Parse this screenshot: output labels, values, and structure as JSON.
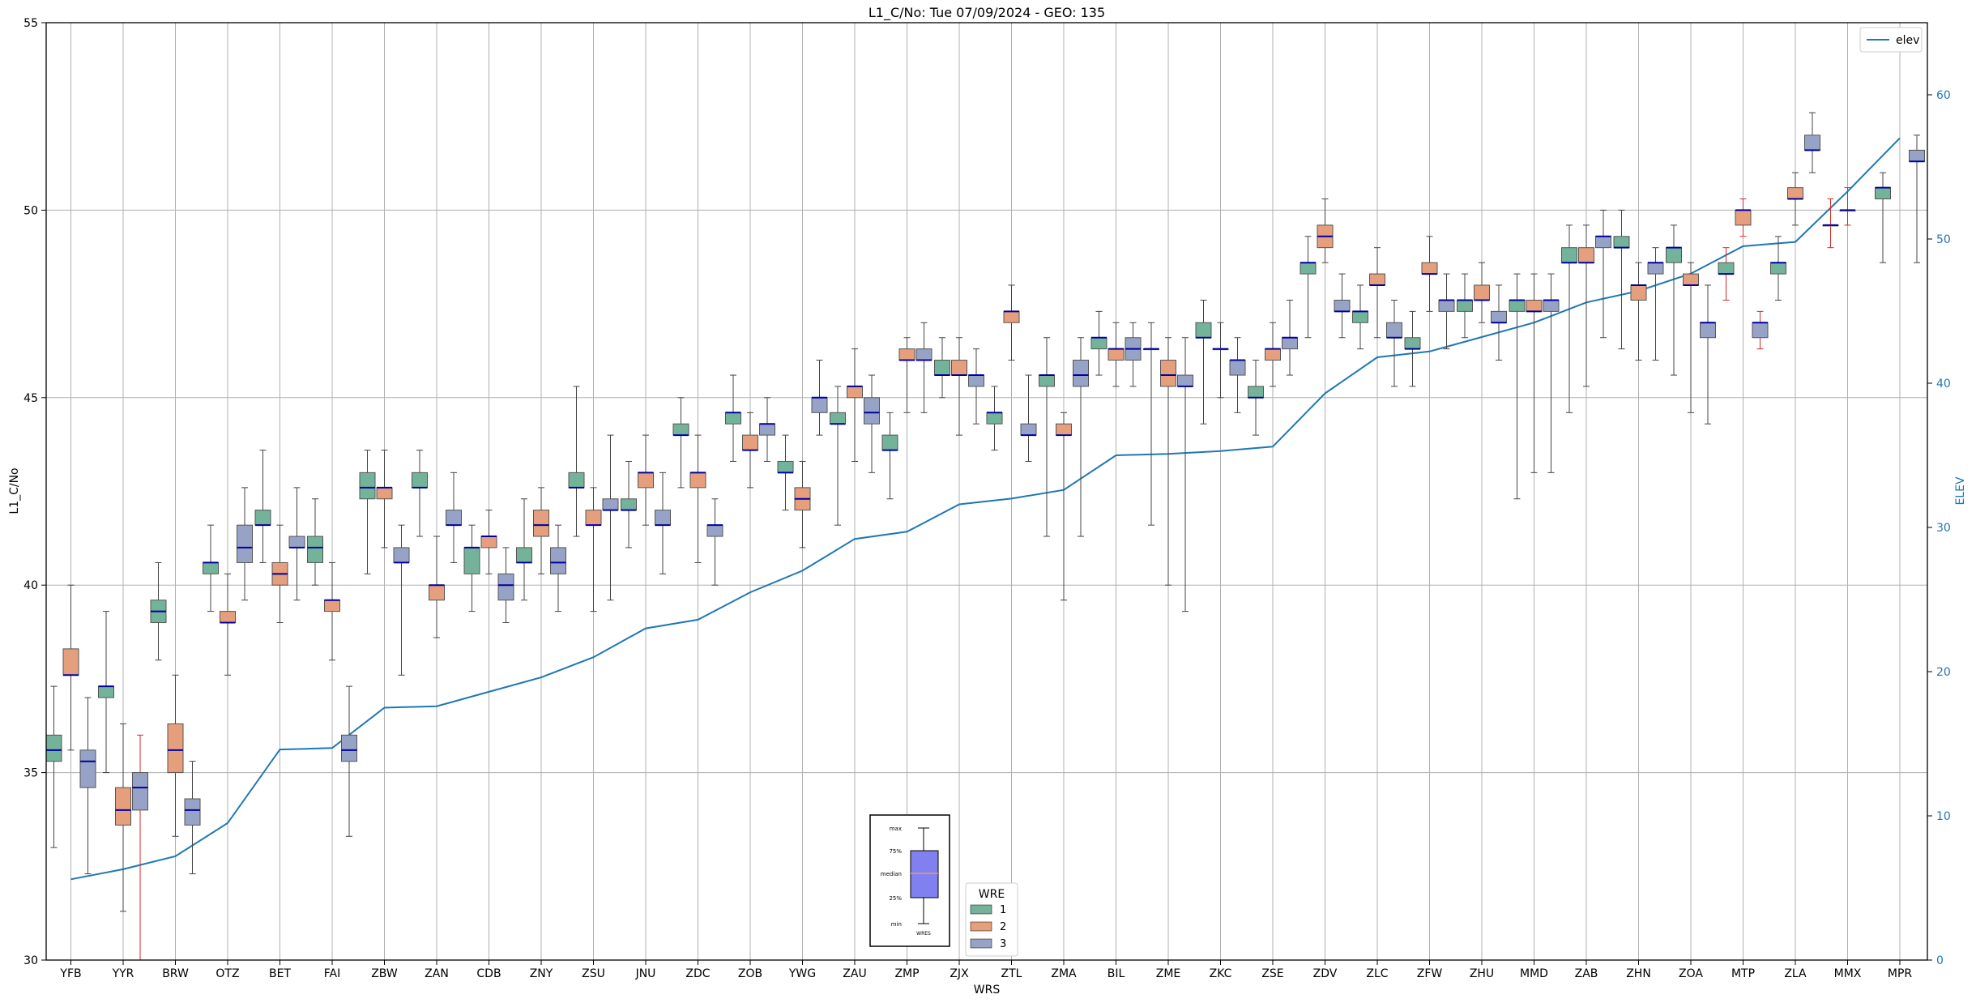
{
  "chart_data": {
    "type": "box",
    "title": "L1_C/No: Tue 07/09/2024 - GEO: 135",
    "xlabel": "WRS",
    "ylabel": "L1_C/No",
    "y2label": "ELEV",
    "ylim": [
      30,
      55
    ],
    "y2lim": [
      0,
      65
    ],
    "yticks": [
      30,
      35,
      40,
      45,
      50,
      55
    ],
    "y2ticks": [
      0,
      10,
      20,
      30,
      40,
      50,
      60
    ],
    "grid": true,
    "categories": [
      "YFB",
      "YYR",
      "BRW",
      "OTZ",
      "BET",
      "FAI",
      "ZBW",
      "ZAN",
      "CDB",
      "ZNY",
      "ZSU",
      "JNU",
      "ZDC",
      "ZOB",
      "YWG",
      "ZAU",
      "ZMP",
      "ZJX",
      "ZTL",
      "ZMA",
      "BIL",
      "ZME",
      "ZKC",
      "ZSE",
      "ZDV",
      "ZLC",
      "ZFW",
      "ZHU",
      "MMD",
      "ZAB",
      "ZHN",
      "ZOA",
      "MTP",
      "ZLA",
      "MMX",
      "MPR"
    ],
    "wre_colors": {
      "1": "#73b39a",
      "2": "#e59f7d",
      "3": "#97a3c6"
    },
    "boxes": [
      {
        "site": "YFB",
        "wre": 1,
        "min": 33.0,
        "q1": 35.3,
        "median": 35.6,
        "q3": 36.0,
        "max": 37.3
      },
      {
        "site": "YFB",
        "wre": 2,
        "min": 35.6,
        "q1": 37.6,
        "median": 37.6,
        "q3": 38.3,
        "max": 40.0
      },
      {
        "site": "YFB",
        "wre": 3,
        "min": 32.3,
        "q1": 34.6,
        "median": 35.3,
        "q3": 35.6,
        "max": 37.0
      },
      {
        "site": "YYR",
        "wre": 1,
        "min": 35.0,
        "q1": 37.0,
        "median": 37.3,
        "q3": 37.3,
        "max": 39.3
      },
      {
        "site": "YYR",
        "wre": 2,
        "min": 31.3,
        "q1": 33.6,
        "median": 34.0,
        "q3": 34.6,
        "max": 36.3
      },
      {
        "site": "YYR",
        "wre": 3,
        "min": 30.0,
        "q1": 34.0,
        "median": 34.6,
        "q3": 35.0,
        "max": 36.0,
        "whisker_color": "#d62728"
      },
      {
        "site": "BRW",
        "wre": 1,
        "min": 38.0,
        "q1": 39.0,
        "median": 39.3,
        "q3": 39.6,
        "max": 40.6
      },
      {
        "site": "BRW",
        "wre": 2,
        "min": 33.3,
        "q1": 35.0,
        "median": 35.6,
        "q3": 36.3,
        "max": 37.6
      },
      {
        "site": "BRW",
        "wre": 3,
        "min": 32.3,
        "q1": 33.6,
        "median": 34.0,
        "q3": 34.3,
        "max": 35.3
      },
      {
        "site": "OTZ",
        "wre": 1,
        "min": 39.3,
        "q1": 40.3,
        "median": 40.6,
        "q3": 40.6,
        "max": 41.6
      },
      {
        "site": "OTZ",
        "wre": 2,
        "min": 37.6,
        "q1": 39.0,
        "median": 39.0,
        "q3": 39.3,
        "max": 40.3
      },
      {
        "site": "OTZ",
        "wre": 3,
        "min": 39.6,
        "q1": 40.6,
        "median": 41.0,
        "q3": 41.6,
        "max": 42.6
      },
      {
        "site": "BET",
        "wre": 1,
        "min": 40.6,
        "q1": 41.6,
        "median": 41.6,
        "q3": 42.0,
        "max": 43.6
      },
      {
        "site": "BET",
        "wre": 2,
        "min": 39.0,
        "q1": 40.0,
        "median": 40.3,
        "q3": 40.6,
        "max": 41.6
      },
      {
        "site": "BET",
        "wre": 3,
        "min": 39.6,
        "q1": 41.0,
        "median": 41.0,
        "q3": 41.3,
        "max": 42.6
      },
      {
        "site": "FAI",
        "wre": 1,
        "min": 40.0,
        "q1": 40.6,
        "median": 41.0,
        "q3": 41.3,
        "max": 42.3
      },
      {
        "site": "FAI",
        "wre": 2,
        "min": 38.0,
        "q1": 39.3,
        "median": 39.6,
        "q3": 39.6,
        "max": 40.6
      },
      {
        "site": "FAI",
        "wre": 3,
        "min": 33.3,
        "q1": 35.3,
        "median": 35.6,
        "q3": 36.0,
        "max": 37.3
      },
      {
        "site": "ZBW",
        "wre": 1,
        "min": 40.3,
        "q1": 42.3,
        "median": 42.6,
        "q3": 43.0,
        "max": 43.6
      },
      {
        "site": "ZBW",
        "wre": 2,
        "min": 41.0,
        "q1": 42.3,
        "median": 42.6,
        "q3": 42.6,
        "max": 43.6
      },
      {
        "site": "ZBW",
        "wre": 3,
        "min": 37.6,
        "q1": 40.6,
        "median": 40.6,
        "q3": 41.0,
        "max": 41.6
      },
      {
        "site": "ZAN",
        "wre": 1,
        "min": 41.3,
        "q1": 42.6,
        "median": 42.6,
        "q3": 43.0,
        "max": 43.6
      },
      {
        "site": "ZAN",
        "wre": 2,
        "min": 38.6,
        "q1": 39.6,
        "median": 40.0,
        "q3": 40.0,
        "max": 41.3
      },
      {
        "site": "ZAN",
        "wre": 3,
        "min": 40.6,
        "q1": 41.6,
        "median": 41.6,
        "q3": 42.0,
        "max": 43.0
      },
      {
        "site": "CDB",
        "wre": 1,
        "min": 39.3,
        "q1": 40.3,
        "median": 41.0,
        "q3": 41.0,
        "max": 41.6
      },
      {
        "site": "CDB",
        "wre": 2,
        "min": 40.3,
        "q1": 41.0,
        "median": 41.3,
        "q3": 41.3,
        "max": 42.0
      },
      {
        "site": "CDB",
        "wre": 3,
        "min": 39.0,
        "q1": 39.6,
        "median": 40.0,
        "q3": 40.3,
        "max": 41.0
      },
      {
        "site": "ZNY",
        "wre": 1,
        "min": 39.6,
        "q1": 40.6,
        "median": 40.6,
        "q3": 41.0,
        "max": 42.3
      },
      {
        "site": "ZNY",
        "wre": 2,
        "min": 40.3,
        "q1": 41.3,
        "median": 41.6,
        "q3": 42.0,
        "max": 42.6
      },
      {
        "site": "ZNY",
        "wre": 3,
        "min": 39.3,
        "q1": 40.3,
        "median": 40.6,
        "q3": 41.0,
        "max": 41.6
      },
      {
        "site": "ZSU",
        "wre": 1,
        "min": 41.3,
        "q1": 42.6,
        "median": 42.6,
        "q3": 43.0,
        "max": 45.3
      },
      {
        "site": "ZSU",
        "wre": 2,
        "min": 39.3,
        "q1": 41.6,
        "median": 41.6,
        "q3": 42.0,
        "max": 42.6
      },
      {
        "site": "ZSU",
        "wre": 3,
        "min": 39.6,
        "q1": 42.0,
        "median": 42.0,
        "q3": 42.3,
        "max": 44.0
      },
      {
        "site": "JNU",
        "wre": 1,
        "min": 41.0,
        "q1": 42.0,
        "median": 42.0,
        "q3": 42.3,
        "max": 43.3
      },
      {
        "site": "JNU",
        "wre": 2,
        "min": 41.6,
        "q1": 42.6,
        "median": 43.0,
        "q3": 43.0,
        "max": 44.0
      },
      {
        "site": "JNU",
        "wre": 3,
        "min": 40.3,
        "q1": 41.6,
        "median": 41.6,
        "q3": 42.0,
        "max": 43.0
      },
      {
        "site": "ZDC",
        "wre": 1,
        "min": 42.6,
        "q1": 44.0,
        "median": 44.0,
        "q3": 44.3,
        "max": 45.0
      },
      {
        "site": "ZDC",
        "wre": 2,
        "min": 40.6,
        "q1": 42.6,
        "median": 43.0,
        "q3": 43.0,
        "max": 44.0
      },
      {
        "site": "ZDC",
        "wre": 3,
        "min": 40.0,
        "q1": 41.3,
        "median": 41.6,
        "q3": 41.6,
        "max": 42.3
      },
      {
        "site": "ZOB",
        "wre": 1,
        "min": 43.3,
        "q1": 44.3,
        "median": 44.6,
        "q3": 44.6,
        "max": 45.6
      },
      {
        "site": "ZOB",
        "wre": 2,
        "min": 42.6,
        "q1": 43.6,
        "median": 43.6,
        "q3": 44.0,
        "max": 44.6
      },
      {
        "site": "ZOB",
        "wre": 3,
        "min": 43.3,
        "q1": 44.0,
        "median": 44.3,
        "q3": 44.3,
        "max": 45.0
      },
      {
        "site": "YWG",
        "wre": 1,
        "min": 42.0,
        "q1": 43.0,
        "median": 43.0,
        "q3": 43.3,
        "max": 44.0
      },
      {
        "site": "YWG",
        "wre": 2,
        "min": 41.0,
        "q1": 42.0,
        "median": 42.3,
        "q3": 42.6,
        "max": 43.3
      },
      {
        "site": "YWG",
        "wre": 3,
        "min": 44.0,
        "q1": 44.6,
        "median": 45.0,
        "q3": 45.0,
        "max": 46.0
      },
      {
        "site": "ZAU",
        "wre": 1,
        "min": 41.6,
        "q1": 44.3,
        "median": 44.3,
        "q3": 44.6,
        "max": 45.3
      },
      {
        "site": "ZAU",
        "wre": 2,
        "min": 43.3,
        "q1": 45.0,
        "median": 45.3,
        "q3": 45.3,
        "max": 46.3
      },
      {
        "site": "ZAU",
        "wre": 3,
        "min": 43.0,
        "q1": 44.3,
        "median": 44.6,
        "q3": 45.0,
        "max": 45.6
      },
      {
        "site": "ZMP",
        "wre": 1,
        "min": 42.3,
        "q1": 43.6,
        "median": 43.6,
        "q3": 44.0,
        "max": 44.6
      },
      {
        "site": "ZMP",
        "wre": 2,
        "min": 44.6,
        "q1": 46.0,
        "median": 46.0,
        "q3": 46.3,
        "max": 46.6
      },
      {
        "site": "ZMP",
        "wre": 3,
        "min": 44.6,
        "q1": 46.0,
        "median": 46.0,
        "q3": 46.3,
        "max": 47.0
      },
      {
        "site": "ZJX",
        "wre": 1,
        "min": 45.0,
        "q1": 45.6,
        "median": 45.6,
        "q3": 46.0,
        "max": 46.6
      },
      {
        "site": "ZJX",
        "wre": 2,
        "min": 44.0,
        "q1": 45.6,
        "median": 45.6,
        "q3": 46.0,
        "max": 46.6
      },
      {
        "site": "ZJX",
        "wre": 3,
        "min": 44.3,
        "q1": 45.3,
        "median": 45.6,
        "q3": 45.6,
        "max": 46.3
      },
      {
        "site": "ZTL",
        "wre": 1,
        "min": 43.6,
        "q1": 44.3,
        "median": 44.6,
        "q3": 44.6,
        "max": 45.3
      },
      {
        "site": "ZTL",
        "wre": 2,
        "min": 46.0,
        "q1": 47.0,
        "median": 47.3,
        "q3": 47.3,
        "max": 48.0
      },
      {
        "site": "ZTL",
        "wre": 3,
        "min": 43.3,
        "q1": 44.0,
        "median": 44.0,
        "q3": 44.3,
        "max": 45.6
      },
      {
        "site": "ZMA",
        "wre": 1,
        "min": 41.3,
        "q1": 45.3,
        "median": 45.6,
        "q3": 45.6,
        "max": 46.6
      },
      {
        "site": "ZMA",
        "wre": 2,
        "min": 39.6,
        "q1": 44.0,
        "median": 44.0,
        "q3": 44.3,
        "max": 44.6
      },
      {
        "site": "ZMA",
        "wre": 3,
        "min": 41.3,
        "q1": 45.3,
        "median": 45.6,
        "q3": 46.0,
        "max": 46.6
      },
      {
        "site": "BIL",
        "wre": 1,
        "min": 45.6,
        "q1": 46.3,
        "median": 46.6,
        "q3": 46.6,
        "max": 47.3
      },
      {
        "site": "BIL",
        "wre": 2,
        "min": 45.3,
        "q1": 46.0,
        "median": 46.3,
        "q3": 46.3,
        "max": 47.0
      },
      {
        "site": "BIL",
        "wre": 3,
        "min": 45.3,
        "q1": 46.0,
        "median": 46.3,
        "q3": 46.6,
        "max": 47.0
      },
      {
        "site": "ZME",
        "wre": 1,
        "min": 41.6,
        "q1": 46.3,
        "median": 46.3,
        "q3": 46.3,
        "max": 47.0
      },
      {
        "site": "ZME",
        "wre": 2,
        "min": 40.0,
        "q1": 45.3,
        "median": 45.6,
        "q3": 46.0,
        "max": 46.6
      },
      {
        "site": "ZME",
        "wre": 3,
        "min": 39.3,
        "q1": 45.3,
        "median": 45.3,
        "q3": 45.6,
        "max": 46.6
      },
      {
        "site": "ZKC",
        "wre": 1,
        "min": 44.3,
        "q1": 46.6,
        "median": 46.6,
        "q3": 47.0,
        "max": 47.6
      },
      {
        "site": "ZKC",
        "wre": 2,
        "min": 45.0,
        "q1": 46.3,
        "median": 46.3,
        "q3": 46.3,
        "max": 47.0
      },
      {
        "site": "ZKC",
        "wre": 3,
        "min": 44.6,
        "q1": 45.6,
        "median": 46.0,
        "q3": 46.0,
        "max": 46.6
      },
      {
        "site": "ZSE",
        "wre": 1,
        "min": 44.0,
        "q1": 45.0,
        "median": 45.0,
        "q3": 45.3,
        "max": 46.0
      },
      {
        "site": "ZSE",
        "wre": 2,
        "min": 45.3,
        "q1": 46.0,
        "median": 46.3,
        "q3": 46.3,
        "max": 47.0
      },
      {
        "site": "ZSE",
        "wre": 3,
        "min": 45.6,
        "q1": 46.3,
        "median": 46.6,
        "q3": 46.6,
        "max": 47.6
      },
      {
        "site": "ZDV",
        "wre": 1,
        "min": 46.6,
        "q1": 48.3,
        "median": 48.6,
        "q3": 48.6,
        "max": 49.3
      },
      {
        "site": "ZDV",
        "wre": 2,
        "min": 48.6,
        "q1": 49.0,
        "median": 49.3,
        "q3": 49.6,
        "max": 50.3
      },
      {
        "site": "ZDV",
        "wre": 3,
        "min": 46.6,
        "q1": 47.3,
        "median": 47.3,
        "q3": 47.6,
        "max": 48.3
      },
      {
        "site": "ZLC",
        "wre": 1,
        "min": 46.3,
        "q1": 47.0,
        "median": 47.3,
        "q3": 47.3,
        "max": 48.0
      },
      {
        "site": "ZLC",
        "wre": 2,
        "min": 46.6,
        "q1": 48.0,
        "median": 48.0,
        "q3": 48.3,
        "max": 49.0
      },
      {
        "site": "ZLC",
        "wre": 3,
        "min": 45.3,
        "q1": 46.6,
        "median": 46.6,
        "q3": 47.0,
        "max": 47.6
      },
      {
        "site": "ZFW",
        "wre": 1,
        "min": 45.3,
        "q1": 46.3,
        "median": 46.3,
        "q3": 46.6,
        "max": 47.3
      },
      {
        "site": "ZFW",
        "wre": 2,
        "min": 47.3,
        "q1": 48.3,
        "median": 48.3,
        "q3": 48.6,
        "max": 49.3
      },
      {
        "site": "ZFW",
        "wre": 3,
        "min": 46.3,
        "q1": 47.3,
        "median": 47.6,
        "q3": 47.6,
        "max": 48.3
      },
      {
        "site": "ZHU",
        "wre": 1,
        "min": 46.6,
        "q1": 47.3,
        "median": 47.6,
        "q3": 47.6,
        "max": 48.3
      },
      {
        "site": "ZHU",
        "wre": 2,
        "min": 47.0,
        "q1": 47.6,
        "median": 47.6,
        "q3": 48.0,
        "max": 48.6
      },
      {
        "site": "ZHU",
        "wre": 3,
        "min": 46.0,
        "q1": 47.0,
        "median": 47.0,
        "q3": 47.3,
        "max": 48.0
      },
      {
        "site": "MMD",
        "wre": 1,
        "min": 42.3,
        "q1": 47.3,
        "median": 47.6,
        "q3": 47.6,
        "max": 48.3
      },
      {
        "site": "MMD",
        "wre": 2,
        "min": 43.0,
        "q1": 47.3,
        "median": 47.3,
        "q3": 47.6,
        "max": 48.3
      },
      {
        "site": "MMD",
        "wre": 3,
        "min": 43.0,
        "q1": 47.3,
        "median": 47.6,
        "q3": 47.6,
        "max": 48.3
      },
      {
        "site": "ZAB",
        "wre": 1,
        "min": 44.6,
        "q1": 48.6,
        "median": 48.6,
        "q3": 49.0,
        "max": 49.6
      },
      {
        "site": "ZAB",
        "wre": 2,
        "min": 45.3,
        "q1": 48.6,
        "median": 48.6,
        "q3": 49.0,
        "max": 49.6
      },
      {
        "site": "ZAB",
        "wre": 3,
        "min": 46.6,
        "q1": 49.0,
        "median": 49.3,
        "q3": 49.3,
        "max": 50.0
      },
      {
        "site": "ZHN",
        "wre": 1,
        "min": 46.3,
        "q1": 49.0,
        "median": 49.0,
        "q3": 49.3,
        "max": 50.0
      },
      {
        "site": "ZHN",
        "wre": 2,
        "min": 46.0,
        "q1": 47.6,
        "median": 48.0,
        "q3": 48.0,
        "max": 48.6
      },
      {
        "site": "ZHN",
        "wre": 3,
        "min": 46.0,
        "q1": 48.3,
        "median": 48.6,
        "q3": 48.6,
        "max": 49.0
      },
      {
        "site": "ZOA",
        "wre": 1,
        "min": 45.6,
        "q1": 48.6,
        "median": 49.0,
        "q3": 49.0,
        "max": 49.6
      },
      {
        "site": "ZOA",
        "wre": 2,
        "min": 44.6,
        "q1": 48.0,
        "median": 48.0,
        "q3": 48.3,
        "max": 48.6
      },
      {
        "site": "ZOA",
        "wre": 3,
        "min": 44.3,
        "q1": 46.6,
        "median": 47.0,
        "q3": 47.0,
        "max": 48.0
      },
      {
        "site": "MTP",
        "wre": 1,
        "min": 47.6,
        "q1": 48.3,
        "median": 48.3,
        "q3": 48.6,
        "max": 49.0,
        "whisker_color": "#d62728"
      },
      {
        "site": "MTP",
        "wre": 2,
        "min": 49.3,
        "q1": 49.6,
        "median": 50.0,
        "q3": 50.0,
        "max": 50.3,
        "whisker_color": "#d62728"
      },
      {
        "site": "MTP",
        "wre": 3,
        "min": 46.3,
        "q1": 46.6,
        "median": 47.0,
        "q3": 47.0,
        "max": 47.3,
        "whisker_color": "#d62728"
      },
      {
        "site": "ZLA",
        "wre": 1,
        "min": 47.6,
        "q1": 48.3,
        "median": 48.6,
        "q3": 48.6,
        "max": 49.3
      },
      {
        "site": "ZLA",
        "wre": 2,
        "min": 49.6,
        "q1": 50.3,
        "median": 50.3,
        "q3": 50.6,
        "max": 51.0
      },
      {
        "site": "ZLA",
        "wre": 3,
        "min": 51.0,
        "q1": 51.6,
        "median": 51.6,
        "q3": 52.0,
        "max": 52.6
      },
      {
        "site": "MMX",
        "wre": 1,
        "min": 49.0,
        "q1": 49.6,
        "median": 49.6,
        "q3": 49.6,
        "max": 50.3,
        "whisker_color": "#d62728"
      },
      {
        "site": "MMX",
        "wre": 2,
        "min": 49.6,
        "q1": 50.0,
        "median": 50.0,
        "q3": 50.0,
        "max": 50.6,
        "whisker_color": "#d62728"
      },
      {
        "site": "MPR",
        "wre": 1,
        "min": 48.6,
        "q1": 50.3,
        "median": 50.6,
        "q3": 50.6,
        "max": 51.0
      },
      {
        "site": "MPR",
        "wre": 3,
        "min": 48.6,
        "q1": 51.3,
        "median": 51.3,
        "q3": 51.6,
        "max": 52.0
      }
    ],
    "elev_series": {
      "name": "elev",
      "color": "#1f77b4",
      "values": [
        5.6,
        6.3,
        7.2,
        9.5,
        14.6,
        14.7,
        17.5,
        17.6,
        18.6,
        19.6,
        21.0,
        23.0,
        23.6,
        25.5,
        27.0,
        29.2,
        29.7,
        31.6,
        32.0,
        32.6,
        35.0,
        35.1,
        35.3,
        35.6,
        39.3,
        41.8,
        42.2,
        43.2,
        44.2,
        45.6,
        46.4,
        47.6,
        49.5,
        49.8,
        53.3,
        57.0
      ]
    },
    "legend_top": {
      "label": "elev",
      "position": "upper right"
    },
    "legend_wre": {
      "title": "WRE",
      "entries": [
        "1",
        "2",
        "3"
      ],
      "position": "lower center"
    },
    "inset_key": {
      "labels": [
        "max",
        "75%",
        "median",
        "25%",
        "min"
      ],
      "caption": "WRES",
      "box_color": "#8080f0",
      "median_color": "#e5a05a"
    }
  }
}
